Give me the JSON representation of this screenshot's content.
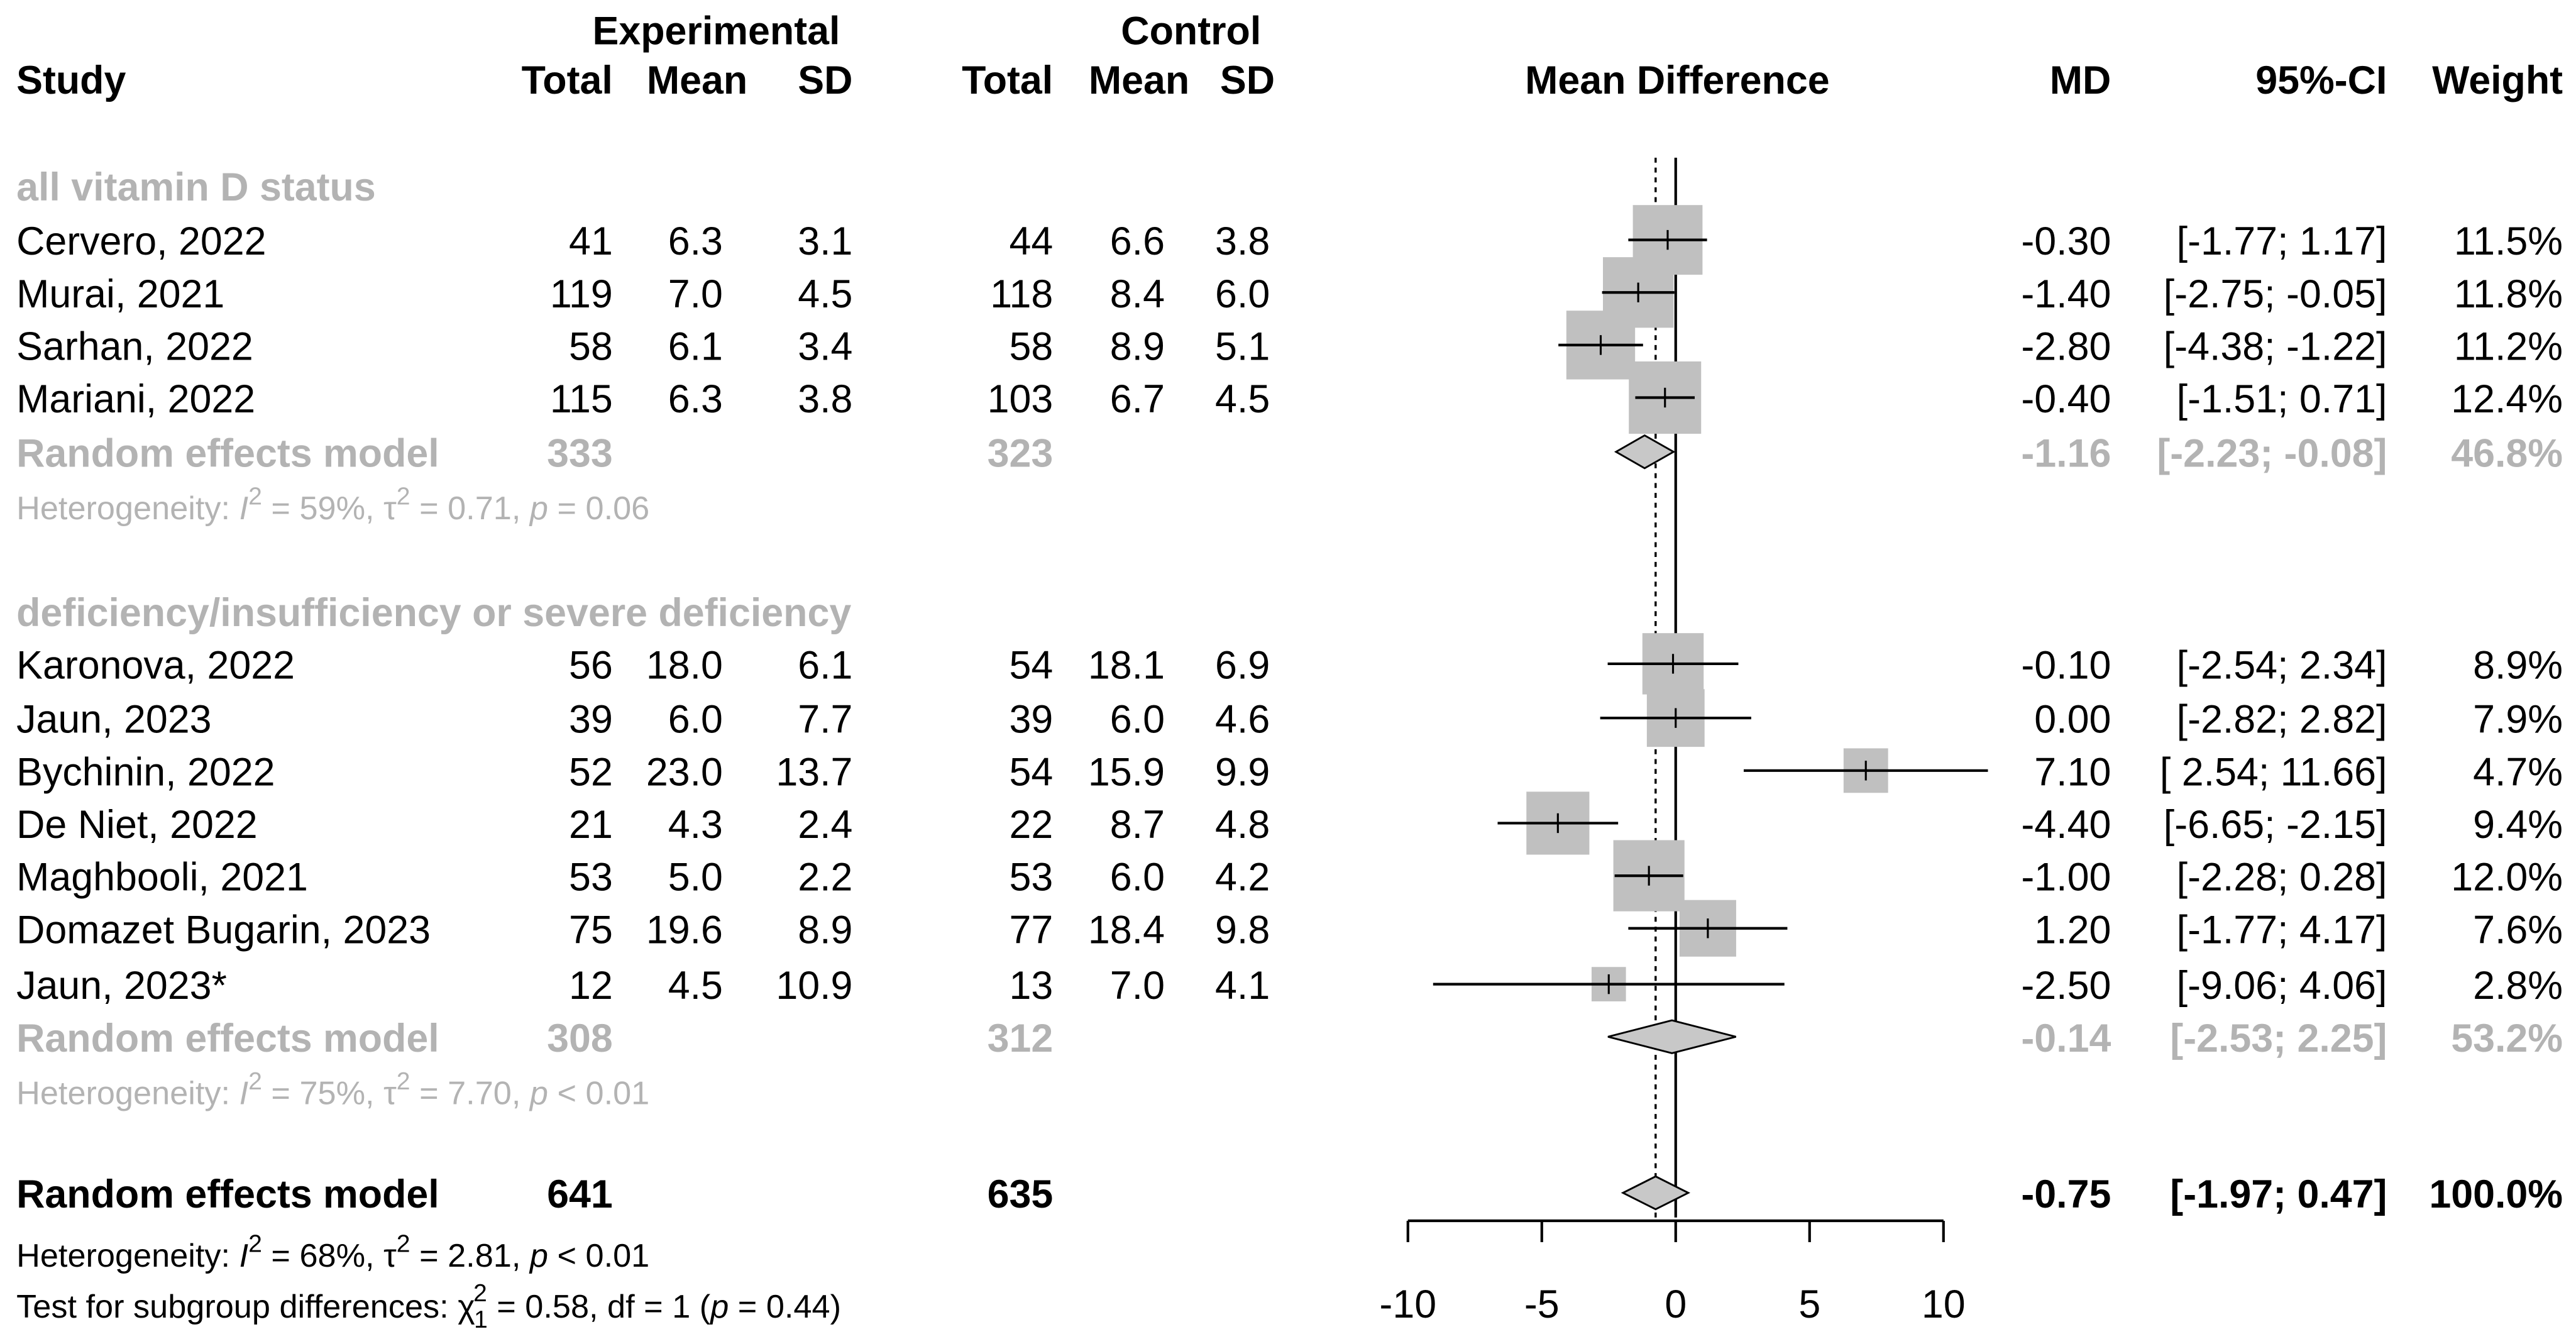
{
  "headers": {
    "experimental": "Experimental",
    "control": "Control",
    "study": "Study",
    "total": "Total",
    "mean": "Mean",
    "sd": "SD",
    "mean_difference": "Mean Difference",
    "md": "MD",
    "ci": "95%-CI",
    "weight": "Weight"
  },
  "colors": {
    "study_box": "#c0c0c0",
    "summary_fill": "#c8c8c8",
    "muted_text": "#b3b3b3"
  },
  "chart_data": {
    "type": "forest",
    "title": "",
    "xlabel": "Mean Difference",
    "xlim": [
      -10,
      10
    ],
    "xticks": [
      -10,
      -5,
      0,
      5,
      10
    ],
    "xtick_labels": [
      "-10",
      "-5",
      "0",
      "5",
      "10"
    ],
    "null_line": 0,
    "overall_estimate_line": -0.75,
    "subgroups": [
      {
        "label": "all vitamin D status",
        "studies": [
          {
            "name": "Cervero, 2022",
            "exp_total": "41",
            "exp_mean": "6.3",
            "exp_sd": "3.1",
            "ctl_total": "44",
            "ctl_mean": "6.6",
            "ctl_sd": "3.8",
            "md": -0.3,
            "lower": -1.77,
            "upper": 1.17,
            "md_text": "-0.30",
            "ci_text": "[-1.77;  1.17]",
            "weight_text": "11.5%"
          },
          {
            "name": "Murai, 2021",
            "exp_total": "119",
            "exp_mean": "7.0",
            "exp_sd": "4.5",
            "ctl_total": "118",
            "ctl_mean": "8.4",
            "ctl_sd": "6.0",
            "md": -1.4,
            "lower": -2.75,
            "upper": -0.05,
            "md_text": "-1.40",
            "ci_text": "[-2.75; -0.05]",
            "weight_text": "11.8%"
          },
          {
            "name": "Sarhan, 2022",
            "exp_total": "58",
            "exp_mean": "6.1",
            "exp_sd": "3.4",
            "ctl_total": "58",
            "ctl_mean": "8.9",
            "ctl_sd": "5.1",
            "md": -2.8,
            "lower": -4.38,
            "upper": -1.22,
            "md_text": "-2.80",
            "ci_text": "[-4.38; -1.22]",
            "weight_text": "11.2%"
          },
          {
            "name": "Mariani, 2022",
            "exp_total": "115",
            "exp_mean": "6.3",
            "exp_sd": "3.8",
            "ctl_total": "103",
            "ctl_mean": "6.7",
            "ctl_sd": "4.5",
            "md": -0.4,
            "lower": -1.51,
            "upper": 0.71,
            "md_text": "-0.40",
            "ci_text": "[-1.51;  0.71]",
            "weight_text": "12.4%"
          }
        ],
        "summary": {
          "label": "Random effects model",
          "exp_total": "333",
          "ctl_total": "323",
          "md": -1.16,
          "lower": -2.23,
          "upper": -0.08,
          "md_text": "-1.16",
          "ci_text": "[-2.23; -0.08]",
          "weight_text": "46.8%"
        },
        "heterogeneity": {
          "prefix": "Heterogeneity: ",
          "i2_sym": "I",
          "i2_rest": " = 59%, ",
          "tau_sym": "τ",
          "tau_rest": " = 0.71, ",
          "p_sym": "p",
          "p_rest": " = 0.06",
          "sup2": "2"
        }
      },
      {
        "label": "deficiency/insufficiency or severe deficiency",
        "studies": [
          {
            "name": "Karonova, 2022",
            "exp_total": "56",
            "exp_mean": "18.0",
            "exp_sd": "6.1",
            "ctl_total": "54",
            "ctl_mean": "18.1",
            "ctl_sd": "6.9",
            "md": -0.1,
            "lower": -2.54,
            "upper": 2.34,
            "md_text": "-0.10",
            "ci_text": "[-2.54;  2.34]",
            "weight_text": "8.9%"
          },
          {
            "name": "Jaun, 2023",
            "exp_total": "39",
            "exp_mean": "6.0",
            "exp_sd": "7.7",
            "ctl_total": "39",
            "ctl_mean": "6.0",
            "ctl_sd": "4.6",
            "md": 0.0,
            "lower": -2.82,
            "upper": 2.82,
            "md_text": "0.00",
            "ci_text": "[-2.82;  2.82]",
            "weight_text": "7.9%"
          },
          {
            "name": "Bychinin, 2022",
            "exp_total": "52",
            "exp_mean": "23.0",
            "exp_sd": "13.7",
            "ctl_total": "54",
            "ctl_mean": "15.9",
            "ctl_sd": "9.9",
            "md": 7.1,
            "lower": 2.54,
            "upper": 11.66,
            "md_text": "7.10",
            "ci_text": "[ 2.54; 11.66]",
            "weight_text": "4.7%"
          },
          {
            "name": "De Niet, 2022",
            "exp_total": "21",
            "exp_mean": "4.3",
            "exp_sd": "2.4",
            "ctl_total": "22",
            "ctl_mean": "8.7",
            "ctl_sd": "4.8",
            "md": -4.4,
            "lower": -6.65,
            "upper": -2.15,
            "md_text": "-4.40",
            "ci_text": "[-6.65; -2.15]",
            "weight_text": "9.4%"
          },
          {
            "name": "Maghbooli, 2021",
            "exp_total": "53",
            "exp_mean": "5.0",
            "exp_sd": "2.2",
            "ctl_total": "53",
            "ctl_mean": "6.0",
            "ctl_sd": "4.2",
            "md": -1.0,
            "lower": -2.28,
            "upper": 0.28,
            "md_text": "-1.00",
            "ci_text": "[-2.28;  0.28]",
            "weight_text": "12.0%"
          },
          {
            "name": "Domazet Bugarin, 2023",
            "exp_total": "75",
            "exp_mean": "19.6",
            "exp_sd": "8.9",
            "ctl_total": "77",
            "ctl_mean": "18.4",
            "ctl_sd": "9.8",
            "md": 1.2,
            "lower": -1.77,
            "upper": 4.17,
            "md_text": "1.20",
            "ci_text": "[-1.77;  4.17]",
            "weight_text": "7.6%"
          },
          {
            "name": "Jaun, 2023*",
            "exp_total": "12",
            "exp_mean": "4.5",
            "exp_sd": "10.9",
            "ctl_total": "13",
            "ctl_mean": "7.0",
            "ctl_sd": "4.1",
            "md": -2.5,
            "lower": -9.06,
            "upper": 4.06,
            "md_text": "-2.50",
            "ci_text": "[-9.06;  4.06]",
            "weight_text": "2.8%"
          }
        ],
        "summary": {
          "label": "Random effects model",
          "exp_total": "308",
          "ctl_total": "312",
          "md": -0.14,
          "lower": -2.53,
          "upper": 2.25,
          "md_text": "-0.14",
          "ci_text": "[-2.53;  2.25]",
          "weight_text": "53.2%"
        },
        "heterogeneity": {
          "prefix": "Heterogeneity: ",
          "i2_sym": "I",
          "i2_rest": " = 75%, ",
          "tau_sym": "τ",
          "tau_rest": " = 7.70, ",
          "p_sym": "p",
          "p_rest": " < 0.01",
          "sup2": "2"
        }
      }
    ],
    "overall": {
      "label": "Random effects model",
      "exp_total": "641",
      "ctl_total": "635",
      "md": -0.75,
      "lower": -1.97,
      "upper": 0.47,
      "md_text": "-0.75",
      "ci_text": "[-1.97;  0.47]",
      "weight_text": "100.0%"
    },
    "overall_heterogeneity": {
      "prefix": "Heterogeneity: ",
      "i2_sym": "I",
      "i2_rest": " = 68%, ",
      "tau_sym": "τ",
      "tau_rest": " = 2.81, ",
      "p_sym": "p",
      "p_rest": " < 0.01",
      "sup2": "2"
    },
    "subgroup_test": {
      "prefix": "Test for subgroup differences: ",
      "chi_sym": "χ",
      "chi_sup": "2",
      "chi_sub": "1",
      "rest1": " = 0.58, df = 1 (",
      "p_sym": "p",
      "rest2": " = 0.44)"
    }
  }
}
